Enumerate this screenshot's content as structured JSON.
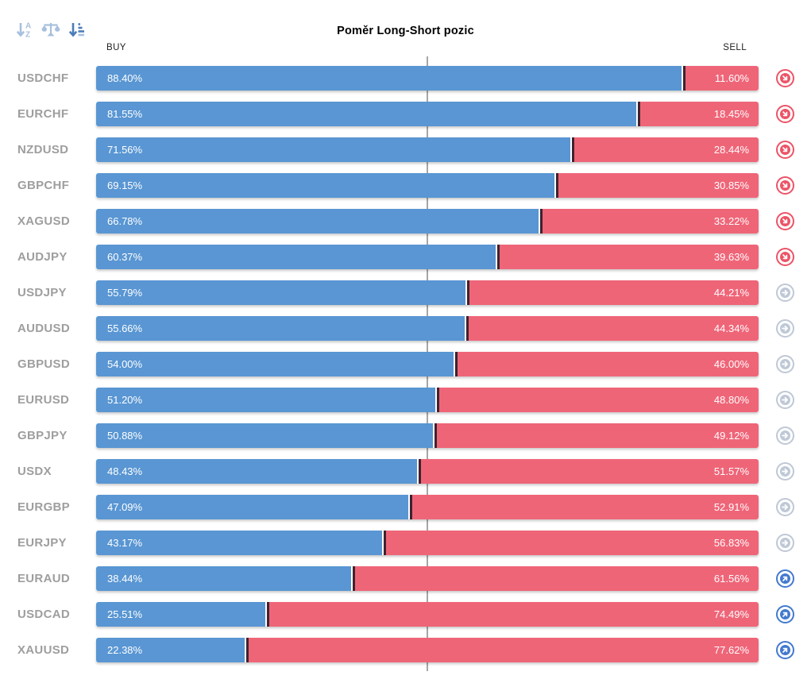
{
  "header": {
    "title": "Poměr Long-Short pozic",
    "buy_label": "BUY",
    "sell_label": "SELL"
  },
  "toolbar": {
    "icons": [
      {
        "name": "sort-alphabetical-icon",
        "active": false
      },
      {
        "name": "balance-scale-icon",
        "active": false
      },
      {
        "name": "sort-amount-desc-icon",
        "active": true
      }
    ]
  },
  "colors": {
    "buy_bar": "#5996d3",
    "sell_bar": "#ef6578",
    "segment_divider": "#3c232e",
    "pair_label": "#9e9e9e",
    "center_gridline": "#a6a6a6",
    "trend_down": "#ec5467",
    "trend_flat": "#bfc8d6",
    "trend_up": "#4379cf",
    "sort_icon_inactive": "#a7c0de",
    "sort_icon_active": "#4a7cb8"
  },
  "chart_data": {
    "type": "bar",
    "orientation": "horizontal",
    "stacked": true,
    "title": "Poměr Long-Short pozic",
    "categories": [
      "USDCHF",
      "EURCHF",
      "NZDUSD",
      "GBPCHF",
      "XAGUSD",
      "AUDJPY",
      "USDJPY",
      "AUDUSD",
      "GBPUSD",
      "EURUSD",
      "GBPJPY",
      "USDX",
      "EURGBP",
      "EURJPY",
      "EURAUD",
      "USDCAD",
      "XAUUSD"
    ],
    "series": [
      {
        "name": "BUY",
        "color": "#5996d3",
        "values": [
          88.4,
          81.55,
          71.56,
          69.15,
          66.78,
          60.37,
          55.79,
          55.66,
          54.0,
          51.2,
          50.88,
          48.43,
          47.09,
          43.17,
          38.44,
          25.51,
          22.38
        ]
      },
      {
        "name": "SELL",
        "color": "#ef6578",
        "values": [
          11.6,
          18.45,
          28.44,
          30.85,
          33.22,
          39.63,
          44.21,
          44.34,
          46.0,
          48.8,
          49.12,
          51.57,
          52.91,
          56.83,
          61.56,
          74.49,
          77.62
        ]
      }
    ],
    "xlim": [
      0,
      100
    ],
    "centerline_at": 50,
    "grid": "single center vertical line",
    "legend_position": "top: BUY left, SELL right",
    "trend_icons": [
      "down",
      "down",
      "down",
      "down",
      "down",
      "down",
      "flat",
      "flat",
      "flat",
      "flat",
      "flat",
      "flat",
      "flat",
      "flat",
      "up",
      "up",
      "up"
    ]
  },
  "rows": [
    {
      "pair": "USDCHF",
      "buy_pct": 88.4,
      "sell_pct": 11.6,
      "buy_label": "88.40%",
      "sell_label": "11.60%",
      "trend": "down"
    },
    {
      "pair": "EURCHF",
      "buy_pct": 81.55,
      "sell_pct": 18.45,
      "buy_label": "81.55%",
      "sell_label": "18.45%",
      "trend": "down"
    },
    {
      "pair": "NZDUSD",
      "buy_pct": 71.56,
      "sell_pct": 28.44,
      "buy_label": "71.56%",
      "sell_label": "28.44%",
      "trend": "down"
    },
    {
      "pair": "GBPCHF",
      "buy_pct": 69.15,
      "sell_pct": 30.85,
      "buy_label": "69.15%",
      "sell_label": "30.85%",
      "trend": "down"
    },
    {
      "pair": "XAGUSD",
      "buy_pct": 66.78,
      "sell_pct": 33.22,
      "buy_label": "66.78%",
      "sell_label": "33.22%",
      "trend": "down"
    },
    {
      "pair": "AUDJPY",
      "buy_pct": 60.37,
      "sell_pct": 39.63,
      "buy_label": "60.37%",
      "sell_label": "39.63%",
      "trend": "down"
    },
    {
      "pair": "USDJPY",
      "buy_pct": 55.79,
      "sell_pct": 44.21,
      "buy_label": "55.79%",
      "sell_label": "44.21%",
      "trend": "flat"
    },
    {
      "pair": "AUDUSD",
      "buy_pct": 55.66,
      "sell_pct": 44.34,
      "buy_label": "55.66%",
      "sell_label": "44.34%",
      "trend": "flat"
    },
    {
      "pair": "GBPUSD",
      "buy_pct": 54.0,
      "sell_pct": 46.0,
      "buy_label": "54.00%",
      "sell_label": "46.00%",
      "trend": "flat"
    },
    {
      "pair": "EURUSD",
      "buy_pct": 51.2,
      "sell_pct": 48.8,
      "buy_label": "51.20%",
      "sell_label": "48.80%",
      "trend": "flat"
    },
    {
      "pair": "GBPJPY",
      "buy_pct": 50.88,
      "sell_pct": 49.12,
      "buy_label": "50.88%",
      "sell_label": "49.12%",
      "trend": "flat"
    },
    {
      "pair": "USDX",
      "buy_pct": 48.43,
      "sell_pct": 51.57,
      "buy_label": "48.43%",
      "sell_label": "51.57%",
      "trend": "flat"
    },
    {
      "pair": "EURGBP",
      "buy_pct": 47.09,
      "sell_pct": 52.91,
      "buy_label": "47.09%",
      "sell_label": "52.91%",
      "trend": "flat"
    },
    {
      "pair": "EURJPY",
      "buy_pct": 43.17,
      "sell_pct": 56.83,
      "buy_label": "43.17%",
      "sell_label": "56.83%",
      "trend": "flat"
    },
    {
      "pair": "EURAUD",
      "buy_pct": 38.44,
      "sell_pct": 61.56,
      "buy_label": "38.44%",
      "sell_label": "61.56%",
      "trend": "up"
    },
    {
      "pair": "USDCAD",
      "buy_pct": 25.51,
      "sell_pct": 74.49,
      "buy_label": "25.51%",
      "sell_label": "74.49%",
      "trend": "up"
    },
    {
      "pair": "XAUUSD",
      "buy_pct": 22.38,
      "sell_pct": 77.62,
      "buy_label": "22.38%",
      "sell_label": "77.62%",
      "trend": "up"
    }
  ]
}
